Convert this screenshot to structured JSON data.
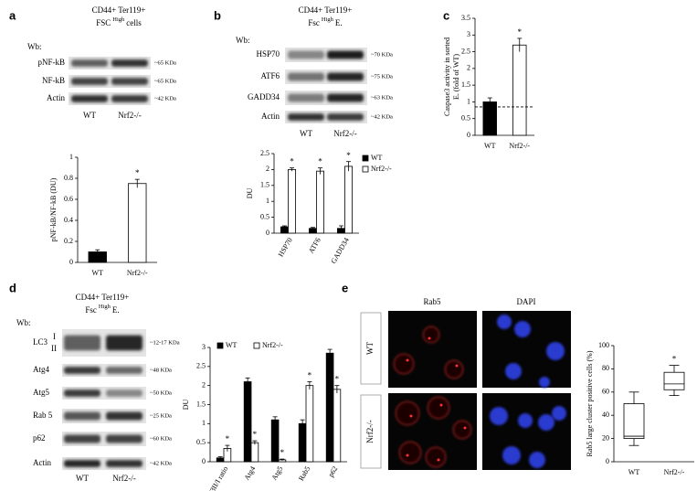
{
  "panels": {
    "a": {
      "letter": "a",
      "header": {
        "line1": "CD44+ Ter119+",
        "pre": "FSC",
        "sup": "High",
        "post": "cells"
      },
      "wb": "Wb:",
      "rows": [
        {
          "label": "pNF-kB",
          "kda": "~65 KDa"
        },
        {
          "label": "NF-kB",
          "kda": "~65 KDa"
        },
        {
          "label": "Actin",
          "kda": "~42 KDa"
        }
      ],
      "lanes": [
        "WT",
        "Nrf2-/-"
      ]
    },
    "b": {
      "letter": "b",
      "header": {
        "line1": "CD44+ Ter119+",
        "pre": "Fsc",
        "sup": "High",
        "post": "E."
      },
      "wb": "Wb:",
      "rows": [
        {
          "label": "HSP70",
          "kda": "~70 KDa"
        },
        {
          "label": "ATF6",
          "kda": "~75 KDa"
        },
        {
          "label": "GADD34",
          "kda": "~63 KDa"
        },
        {
          "label": "Actin",
          "kda": "~42 KDa"
        }
      ],
      "lanes": [
        "WT",
        "Nrf2-/-"
      ]
    },
    "c": {
      "letter": "c"
    },
    "d": {
      "letter": "d",
      "header": {
        "line1": "CD44+ Ter119+",
        "pre": "Fsc",
        "sup": "High",
        "post": "E."
      },
      "wb": "Wb:",
      "lc3_sub": [
        "I",
        "II"
      ],
      "rows": [
        {
          "label": "LC3",
          "kda": "~12-17 KDa"
        },
        {
          "label": "Atg4",
          "kda": "~48 KDa"
        },
        {
          "label": "Atg5",
          "kda": "~50 KDa"
        },
        {
          "label": "Rab 5",
          "kda": "~25 KDa"
        },
        {
          "label": "p62",
          "kda": "~60 KDa"
        },
        {
          "label": "Actin",
          "kda": "~42 KDa"
        }
      ],
      "lanes": [
        "WT",
        "Nrf2-/-"
      ]
    },
    "e": {
      "letter": "e",
      "channels": [
        "Rab5",
        "DAPI"
      ],
      "rows": [
        "WT",
        "Nrf2-/-"
      ]
    }
  },
  "chart_data": [
    {
      "type": "bar",
      "ylabel": "pNF-kB/NF-kB (DU)",
      "categories": [
        "WT",
        "Nrf2-/-"
      ],
      "values": [
        0.1,
        0.75
      ],
      "errors": [
        0.02,
        0.04
      ],
      "colors": [
        "#000000",
        "#ffffff"
      ],
      "annotations": [
        null,
        "*"
      ],
      "ylim": [
        0,
        1
      ],
      "yticks": [
        0,
        0.2,
        0.4,
        0.6,
        0.8,
        1
      ]
    },
    {
      "type": "grouped_bar",
      "ylabel": "DU",
      "categories": [
        "HSP70",
        "ATF6",
        "GADD34"
      ],
      "rotate_labels": true,
      "legend": "right",
      "series": [
        {
          "name": "WT",
          "color": "#000000",
          "values": [
            0.2,
            0.15,
            0.15
          ],
          "errors": [
            0.03,
            0.03,
            0.08
          ]
        },
        {
          "name": "Nrf2-/-",
          "color": "#ffffff",
          "values": [
            2.0,
            1.95,
            2.1
          ],
          "errors": [
            0.05,
            0.1,
            0.15
          ]
        }
      ],
      "annotations": [
        "*",
        "*",
        "*"
      ],
      "ylim": [
        0,
        2.5
      ],
      "yticks": [
        0,
        0.5,
        1,
        1.5,
        2,
        2.5
      ]
    },
    {
      "type": "bar",
      "ylabel": [
        "Caspase3 activity in sorted",
        "E. (fold of WT)"
      ],
      "categories": [
        "WT",
        "Nrf2-/-"
      ],
      "values": [
        1,
        2.7
      ],
      "errors": [
        0.12,
        0.2
      ],
      "colors": [
        "#000000",
        "#ffffff"
      ],
      "annotations": [
        null,
        "*"
      ],
      "reference_line": 0.85,
      "ylim": [
        0,
        3.5
      ],
      "yticks": [
        0,
        0.5,
        1,
        1.5,
        2,
        2.5,
        3,
        3.5
      ]
    },
    {
      "type": "grouped_bar",
      "ylabel": "DU",
      "categories": [
        "LC3II/I ratio",
        "Atg4",
        "Atg5",
        "Rab5",
        "p62"
      ],
      "rotate_labels": true,
      "legend": "top-left",
      "series": [
        {
          "name": "WT",
          "color": "#000000",
          "values": [
            0.1,
            2.1,
            1.1,
            1.0,
            2.85
          ],
          "errors": [
            0.03,
            0.1,
            0.08,
            0.1,
            0.1
          ]
        },
        {
          "name": "Nrf2-/-",
          "color": "#ffffff",
          "values": [
            0.35,
            0.5,
            0.05,
            2.0,
            1.9
          ],
          "errors": [
            0.08,
            0.05,
            0.02,
            0.1,
            0.1
          ]
        }
      ],
      "annotations": [
        "*",
        "*",
        "*",
        "*",
        "*"
      ],
      "ylim": [
        0,
        3
      ],
      "yticks": [
        0,
        0.5,
        1,
        1.5,
        2,
        2.5,
        3
      ]
    },
    {
      "type": "box",
      "ylabel": "Rab5 large cluster positive cells (%)",
      "categories": [
        "WT",
        "Nrf2-/-"
      ],
      "boxes": [
        {
          "min": 14,
          "q1": 20,
          "median": 22,
          "q3": 50,
          "max": 60
        },
        {
          "min": 57,
          "q1": 62,
          "median": 67,
          "q3": 77,
          "max": 83
        }
      ],
      "annotations": [
        null,
        "*"
      ],
      "ylim": [
        0,
        100
      ],
      "yticks": [
        0,
        20,
        40,
        60,
        80,
        100
      ]
    }
  ]
}
